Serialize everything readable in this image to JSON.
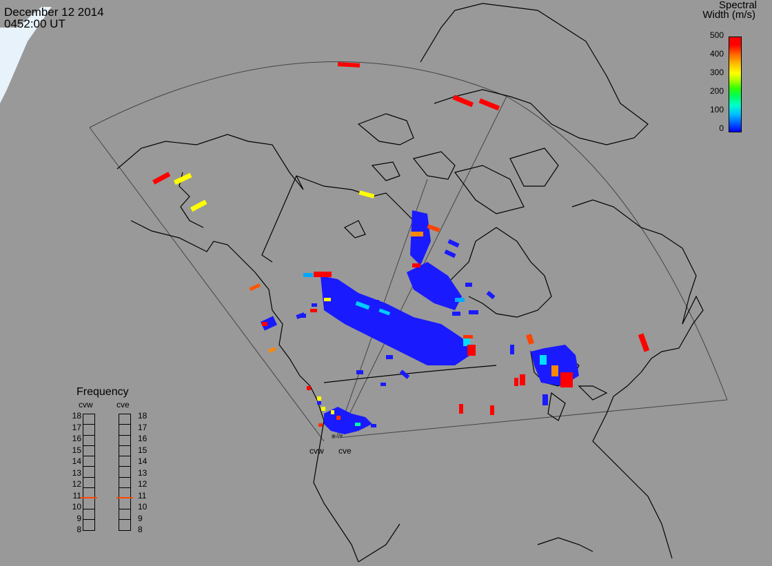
{
  "header": {
    "date": "December 12 2014",
    "time": "0452:00 UT"
  },
  "colorbar": {
    "title_line1": "Spectral",
    "title_line2": "Width (m/s)",
    "ticks": [
      "500",
      "400",
      "300",
      "200",
      "100",
      "0"
    ],
    "min": 0,
    "max": 500,
    "colors": [
      "#0000ff",
      "#00ccff",
      "#00ff66",
      "#ffff00",
      "#ff8800",
      "#ff0000"
    ]
  },
  "frequency_panel": {
    "title": "Frequency",
    "radars": [
      {
        "name": "cvw",
        "frequency_mhz": 10.8
      },
      {
        "name": "cve",
        "frequency_mhz": 10.8
      }
    ],
    "levels": [
      "18",
      "17",
      "16",
      "15",
      "14",
      "13",
      "12",
      "11",
      "10",
      "9",
      "8"
    ],
    "marker_color": "#ff4400"
  },
  "stations": [
    {
      "name": "cvw"
    },
    {
      "name": "cve"
    }
  ],
  "colors": {
    "background": "#999999",
    "coastline": "#000000",
    "fov": "#444444"
  }
}
